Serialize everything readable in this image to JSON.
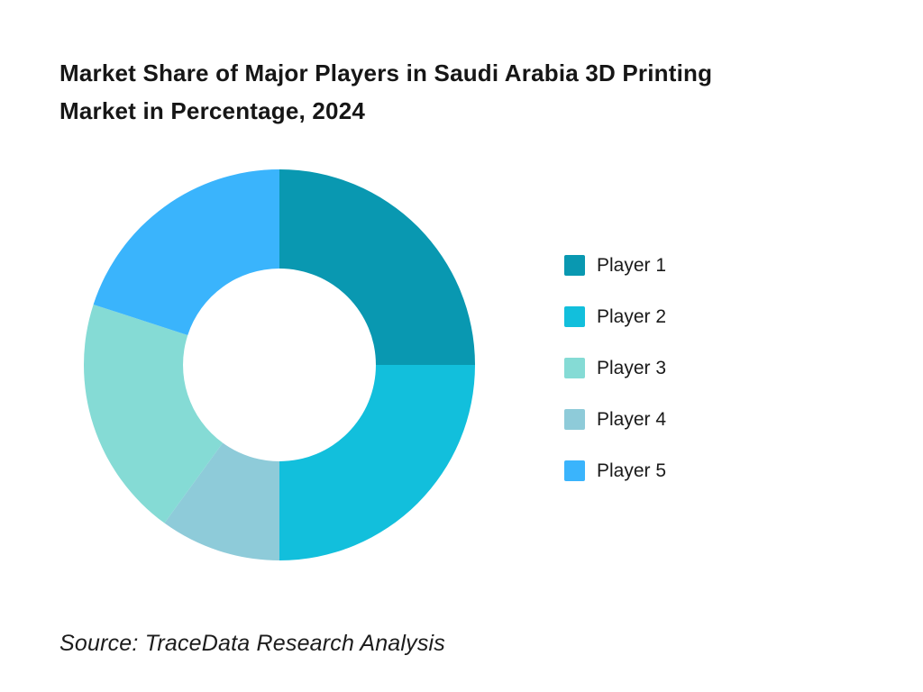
{
  "page": {
    "background": "#ffffff"
  },
  "header": {
    "title_lines": [
      "Market Share of Major Players in Saudi Arabia 3D Printing",
      "Market in Percentage, 2024"
    ]
  },
  "chart_data": {
    "type": "pie",
    "subtype": "donut",
    "title": "Market Share of Major Players in Saudi Arabia 3D Printing Market in Percentage, 2024",
    "unit": "percent",
    "categories": [
      "Player 1",
      "Player 2",
      "Player 3",
      "Player 4",
      "Player 5"
    ],
    "values": [
      25,
      25,
      20,
      10,
      20
    ],
    "colors": [
      "#0998B1",
      "#12BFDC",
      "#85DBD5",
      "#8ECBD9",
      "#3AB4FC"
    ],
    "start_angle_deg": 0,
    "direction": "clockwise",
    "draw_order_clockwise_from_top": [
      0,
      1,
      3,
      2,
      4
    ],
    "inner_radius_ratio": 0.493,
    "legend_position": "right",
    "data_labels": false
  },
  "legend": {
    "items": [
      {
        "label": "Player 1",
        "color": "#0998B1"
      },
      {
        "label": "Player 2",
        "color": "#12BFDC"
      },
      {
        "label": "Player 3",
        "color": "#85DBD5"
      },
      {
        "label": "Player 4",
        "color": "#8ECBD9"
      },
      {
        "label": "Player 5",
        "color": "#3AB4FC"
      }
    ]
  },
  "footer": {
    "source": "Source: TraceData Research Analysis"
  }
}
